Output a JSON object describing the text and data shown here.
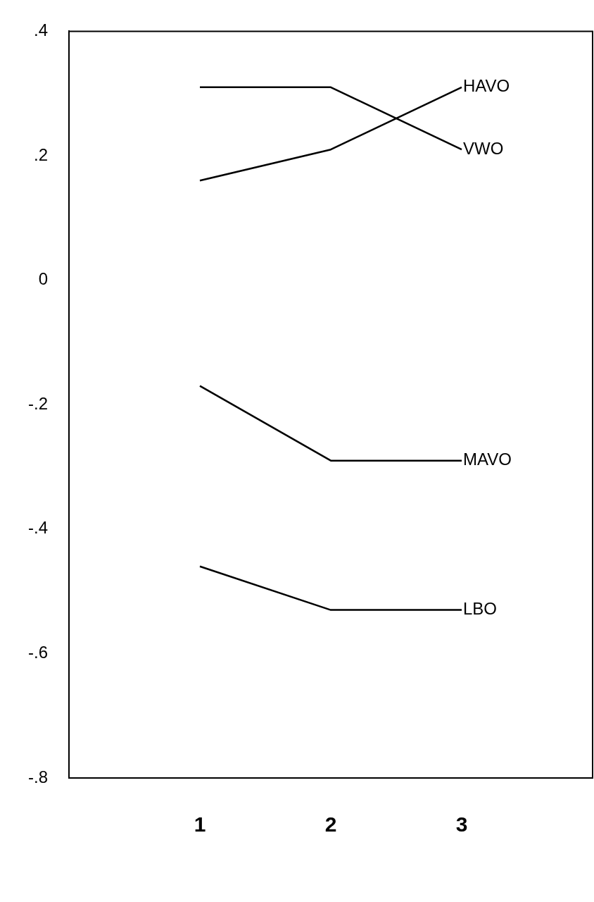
{
  "chart_data": {
    "type": "line",
    "x": [
      1,
      2,
      3
    ],
    "xlim": [
      0,
      4
    ],
    "xticks": [
      1,
      2,
      3
    ],
    "ylim": [
      -0.8,
      0.4
    ],
    "yticks": [
      {
        "value": 0.4,
        "label": ".4"
      },
      {
        "value": 0.2,
        "label": ".2"
      },
      0,
      {
        "value": -0.2,
        "label": "-.2"
      },
      {
        "value": -0.4,
        "label": "-.4"
      },
      {
        "value": -0.6,
        "label": "-.6"
      },
      {
        "value": -0.8,
        "label": "-.8"
      }
    ],
    "series": [
      {
        "name": "HAVO",
        "color": "#000000",
        "values": [
          0.16,
          0.21,
          0.31
        ]
      },
      {
        "name": "VWO",
        "color": "#000000",
        "values": [
          0.31,
          0.31,
          0.21
        ]
      },
      {
        "name": "MAVO",
        "color": "#000000",
        "values": [
          -0.17,
          -0.29,
          -0.29
        ]
      },
      {
        "name": "LBO",
        "color": "#000000",
        "values": [
          -0.46,
          -0.53,
          -0.53
        ]
      }
    ],
    "grid": false,
    "legend": false,
    "marker": "none",
    "line_style": "solid"
  }
}
